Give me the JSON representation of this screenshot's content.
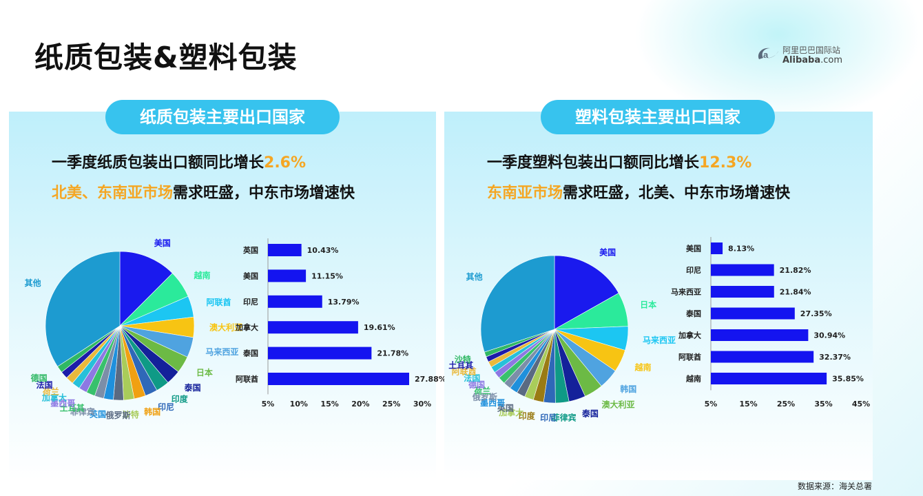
{
  "page": {
    "title": "纸质包装&塑料包装",
    "logo_line1": "阿里巴巴国际站",
    "logo_line2_main": "Alibaba",
    "logo_line2_suffix": ".com",
    "source": "数据来源：海关总署"
  },
  "left": {
    "pill": "纸质包装主要出口国家",
    "line1_main": "一季度纸质包装出口额同比增长",
    "line1_highlight": "2.6%",
    "line2_highlight": "北美、东南亚市场",
    "line2_main": "需求旺盛，中东市场增速快"
  },
  "right": {
    "pill": "塑料包装主要出口国家",
    "line1_main": "一季度塑料包装出口额同比增长",
    "line1_highlight": "12.3%",
    "line2_highlight": "东南亚市场",
    "line2_main": "需求旺盛，北美、中东市场增速快"
  },
  "chart_data": [
    {
      "type": "pie",
      "title": "",
      "labels": [
        "美国",
        "越南",
        "阿联酋",
        "澳大利亚",
        "马来西亚",
        "日本",
        "泰国",
        "印度",
        "印尼",
        "韩国",
        "沙特",
        "俄罗斯",
        "英国",
        "菲律宾",
        "土耳其",
        "墨西哥",
        "加拿大",
        "荷兰",
        "法国",
        "德国",
        "其他"
      ],
      "values": [
        12.5,
        6.0,
        4.6,
        4.4,
        4.4,
        3.7,
        3.2,
        2.9,
        2.7,
        2.5,
        2.3,
        2.2,
        2.1,
        2.0,
        1.9,
        1.8,
        1.8,
        1.7,
        1.6,
        1.5,
        34.2
      ],
      "colors": [
        "#1a1aee",
        "#2bea9b",
        "#1cc6f2",
        "#f7c413",
        "#4fa3e0",
        "#6cba45",
        "#14219a",
        "#0f9a86",
        "#2f68b8",
        "#f0a012",
        "#a9cc5a",
        "#5a6a82",
        "#1f90dc",
        "#7c8ea8",
        "#38c16c",
        "#8d78e3",
        "#27c0d9",
        "#e9b93c",
        "#1c1ca9",
        "#2fb864",
        "#1d9bd0"
      ],
      "label_colors": [
        "#1a1aee",
        "#2bea9b",
        "#1cc6f2",
        "#f7c413",
        "#4fa3e0",
        "#6cba45",
        "#14219a",
        "#0f9a86",
        "#2f68b8",
        "#f0a012",
        "#a9cc5a",
        "#5a6a82",
        "#1f90dc",
        "#7c8ea8",
        "#38c16c",
        "#8d78e3",
        "#27c0d9",
        "#e9b93c",
        "#1c1ca9",
        "#2fb864",
        "#1d9bd0"
      ]
    },
    {
      "type": "bar",
      "orientation": "horizontal",
      "categories": [
        "英国",
        "美国",
        "印尼",
        "加拿大",
        "泰国",
        "阿联酋"
      ],
      "values": [
        10.43,
        11.15,
        13.79,
        19.61,
        21.78,
        27.88
      ],
      "value_labels": [
        "10.43%",
        "11.15%",
        "13.79%",
        "19.61%",
        "21.78%",
        "27.88%"
      ],
      "xlim": [
        5,
        30
      ],
      "ticks": [
        "5%",
        "10%",
        "15%",
        "20%",
        "25%",
        "30%"
      ],
      "bar_color": "#1414f0"
    },
    {
      "type": "pie",
      "title": "",
      "labels": [
        "美国",
        "日本",
        "马来西亚",
        "越南",
        "韩国",
        "澳大利亚",
        "泰国",
        "菲律宾",
        "印尼",
        "印度",
        "加拿大",
        "英国",
        "墨西哥",
        "俄罗斯",
        "荷兰",
        "德国",
        "法国",
        "阿联酋",
        "土耳其",
        "沙特",
        "其他"
      ],
      "values": [
        17.0,
        7.6,
        5.3,
        5.0,
        4.5,
        4.2,
        3.7,
        3.0,
        2.6,
        2.3,
        2.0,
        1.9,
        1.8,
        1.7,
        1.6,
        1.5,
        1.4,
        1.3,
        1.2,
        1.1,
        30.3
      ],
      "colors": [
        "#1a1aee",
        "#2bea9b",
        "#1cc6f2",
        "#f7c413",
        "#4fa3e0",
        "#6cba45",
        "#14219a",
        "#0f9a86",
        "#2f68b8",
        "#9a7b14",
        "#a9cc5a",
        "#5a6a82",
        "#1f90dc",
        "#7c8ea8",
        "#38c16c",
        "#8d78e3",
        "#27c0d9",
        "#e9b93c",
        "#1c1ca9",
        "#2fb864",
        "#1d9bd0"
      ],
      "label_colors": [
        "#1a1aee",
        "#2bea9b",
        "#1cc6f2",
        "#f7c413",
        "#4fa3e0",
        "#6cba45",
        "#14219a",
        "#0f9a86",
        "#2f68b8",
        "#9a7b14",
        "#a9cc5a",
        "#5a6a82",
        "#1f90dc",
        "#7c8ea8",
        "#38c16c",
        "#8d78e3",
        "#27c0d9",
        "#e9b93c",
        "#1c1ca9",
        "#2fb864",
        "#1d9bd0"
      ]
    },
    {
      "type": "bar",
      "orientation": "horizontal",
      "categories": [
        "美国",
        "印尼",
        "马来西亚",
        "泰国",
        "加拿大",
        "阿联酋",
        "越南"
      ],
      "values": [
        8.13,
        21.82,
        21.84,
        27.35,
        30.94,
        32.37,
        35.85
      ],
      "value_labels": [
        "8.13%",
        "21.82%",
        "21.84%",
        "27.35%",
        "30.94%",
        "32.37%",
        "35.85%"
      ],
      "xlim": [
        5,
        45
      ],
      "ticks": [
        "5%",
        "15%",
        "25%",
        "35%",
        "45%"
      ],
      "bar_color": "#1414f0"
    }
  ]
}
